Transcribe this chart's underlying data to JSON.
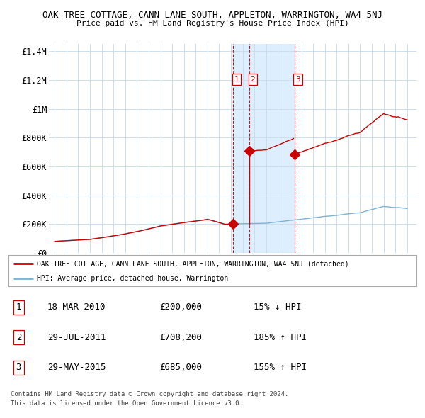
{
  "title": "OAK TREE COTTAGE, CANN LANE SOUTH, APPLETON, WARRINGTON, WA4 5NJ",
  "subtitle": "Price paid vs. HM Land Registry's House Price Index (HPI)",
  "legend_red": "OAK TREE COTTAGE, CANN LANE SOUTH, APPLETON, WARRINGTON, WA4 5NJ (detached)",
  "legend_blue": "HPI: Average price, detached house, Warrington",
  "transactions": [
    {
      "num": 1,
      "date": "18-MAR-2010",
      "price": "£200,000",
      "pct": "15% ↓ HPI",
      "x_year": 2010.21,
      "y_val": 200000
    },
    {
      "num": 2,
      "date": "29-JUL-2011",
      "price": "£708,200",
      "pct": "185% ↑ HPI",
      "x_year": 2011.57,
      "y_val": 708200
    },
    {
      "num": 3,
      "date": "29-MAY-2015",
      "price": "£685,000",
      "pct": "155% ↑ HPI",
      "x_year": 2015.41,
      "y_val": 685000
    }
  ],
  "footer1": "Contains HM Land Registry data © Crown copyright and database right 2024.",
  "footer2": "This data is licensed under the Open Government Licence v3.0.",
  "ylim": [
    0,
    1450000
  ],
  "yticks": [
    0,
    200000,
    400000,
    600000,
    800000,
    1000000,
    1200000,
    1400000
  ],
  "ytick_labels": [
    "£0",
    "£200K",
    "£400K",
    "£600K",
    "£800K",
    "£1M",
    "£1.2M",
    "£1.4M"
  ],
  "xlim_start": 1994.5,
  "xlim_end": 2025.8,
  "red_color": "#cc0000",
  "blue_color": "#7fb3d3",
  "vline_color": "#cc0000",
  "shade_color": "#ddeeff",
  "background_color": "#ffffff",
  "grid_color": "#ccddee"
}
